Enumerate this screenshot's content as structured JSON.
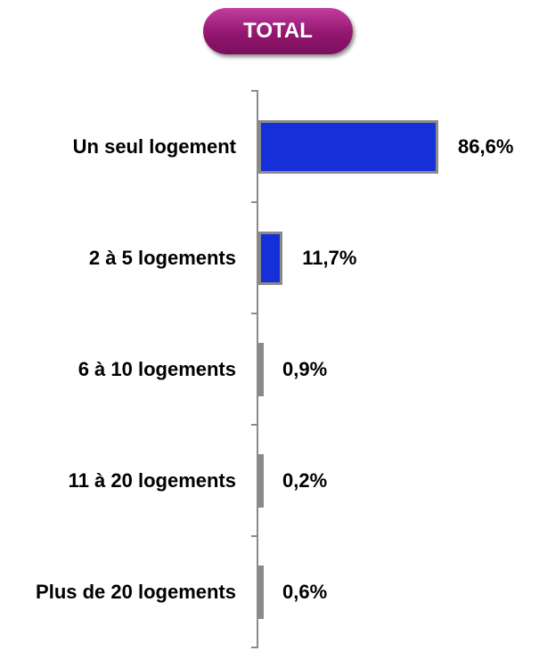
{
  "chart_data": {
    "type": "bar",
    "orientation": "horizontal",
    "title": "TOTAL",
    "categories": [
      "Un seul logement",
      "2 à 5 logements",
      "6 à 10 logements",
      "11 à 20 logements",
      "Plus de 20 logements"
    ],
    "values": [
      86.6,
      11.7,
      0.9,
      0.2,
      0.6
    ],
    "value_labels": [
      "86,6%",
      "11,7%",
      "0,9%",
      "0,2%",
      "0,6%"
    ],
    "color": "#1530d8"
  }
}
